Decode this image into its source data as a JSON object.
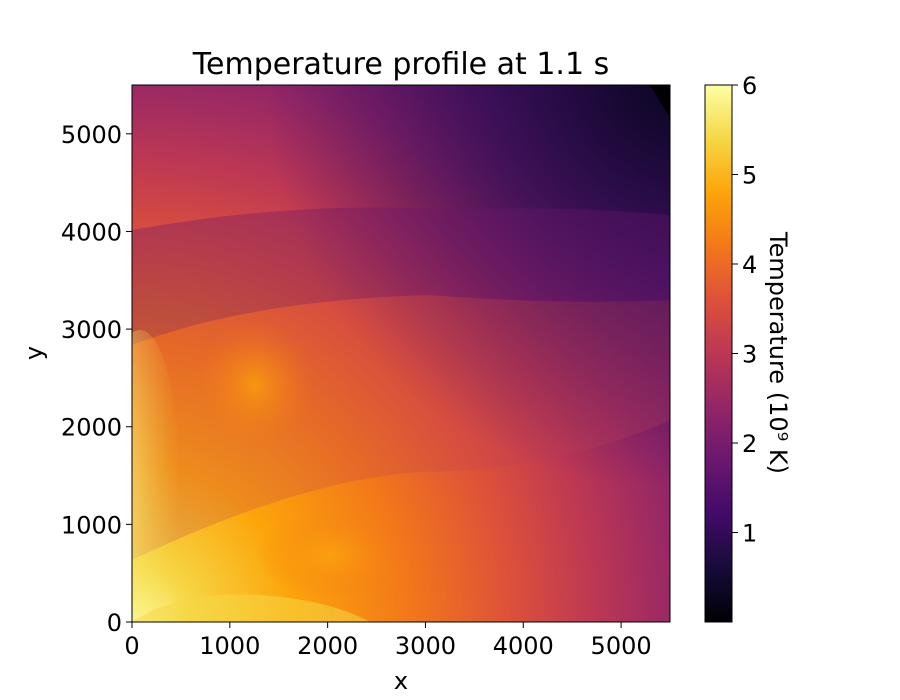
{
  "chart_data": {
    "type": "heatmap",
    "title": "Temperature profile at 1.1 s",
    "xlabel": "x",
    "ylabel": "y",
    "xlim": [
      0,
      5500
    ],
    "ylim": [
      0,
      5500
    ],
    "xticks": [
      0,
      1000,
      2000,
      3000,
      4000,
      5000
    ],
    "yticks": [
      0,
      1000,
      2000,
      3000,
      4000,
      5000
    ],
    "colorbar": {
      "label": "Temperature (10⁹ K)",
      "range": [
        0,
        6
      ],
      "ticks": [
        1,
        2,
        3,
        4,
        5,
        6
      ],
      "colormap": "inferno"
    }
  }
}
